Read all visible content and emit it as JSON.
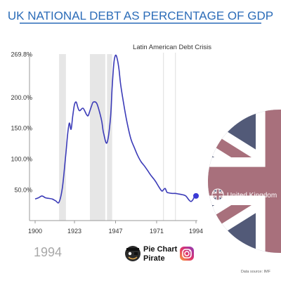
{
  "title": "UK NATIONAL DEBT AS PERCENTAGE OF GDP",
  "current_year_label": "1994",
  "annotation": "Latin American Debt Crisis",
  "brand": {
    "name_line1": "Pie Chart",
    "name_line2": "Pirate"
  },
  "source": "Data source: IMF",
  "colors": {
    "title": "#2b6cb8",
    "line": "#3b3bb8",
    "dot": "#3b3bd6",
    "shading": "#e6e6e6",
    "axis": "#999999",
    "grid_text": "#333333",
    "year_label": "#a8a8a8",
    "flag_red": "#a8707c",
    "flag_blue": "#525a78",
    "flag_white": "#ffffff"
  },
  "icons": [
    "pirate-avatar-icon",
    "instagram-icon",
    "uk-flag-icon"
  ],
  "chart_data": {
    "type": "line",
    "title": "UK NATIONAL DEBT AS PERCENTAGE OF GDP",
    "xlabel": "",
    "ylabel": "",
    "xlim": [
      1900,
      1994
    ],
    "ylim": [
      0,
      269.8
    ],
    "x_ticks": [
      "1900",
      "1923",
      "1947",
      "1971",
      "1994"
    ],
    "y_ticks": [
      "50.0%",
      "100.0%",
      "150.0%",
      "200.0%",
      "269.8%"
    ],
    "y_tick_values": [
      50,
      100,
      150,
      200,
      269.8
    ],
    "x_tick_values": [
      1900,
      1923,
      1947,
      1971,
      1994
    ],
    "shaded_periods": [
      [
        1914,
        1918
      ],
      [
        1932,
        1941
      ],
      [
        1942,
        1945
      ]
    ],
    "event_lines": [
      {
        "x": 1975
      },
      {
        "x": 1982
      }
    ],
    "series": [
      {
        "name": "United Kingdom",
        "x": [
          1900,
          1902,
          1904,
          1906,
          1908,
          1910,
          1912,
          1914,
          1916,
          1918,
          1919,
          1920,
          1921,
          1922,
          1923,
          1924,
          1925,
          1926,
          1928,
          1930,
          1931,
          1932,
          1933,
          1934,
          1936,
          1938,
          1939,
          1940,
          1942,
          1944,
          1945,
          1946,
          1947,
          1948,
          1949,
          1950,
          1952,
          1954,
          1956,
          1958,
          1960,
          1962,
          1964,
          1966,
          1968,
          1970,
          1972,
          1974,
          1975,
          1976,
          1977,
          1978,
          1980,
          1982,
          1984,
          1986,
          1988,
          1990,
          1991,
          1992,
          1993,
          1994
        ],
        "values": [
          35,
          37,
          40,
          37,
          36,
          35,
          32,
          30,
          55,
          110,
          140,
          158,
          148,
          170,
          188,
          192,
          183,
          178,
          182,
          172,
          170,
          178,
          186,
          192,
          190,
          172,
          160,
          142,
          126,
          165,
          215,
          255,
          268,
          262,
          245,
          220,
          185,
          155,
          132,
          118,
          105,
          95,
          88,
          80,
          72,
          65,
          56,
          48,
          50,
          52,
          46,
          45,
          44,
          44,
          43,
          42,
          40,
          33,
          31,
          33,
          38,
          40
        ]
      }
    ]
  },
  "legend": {
    "label": "United Kingdom",
    "placement": "right"
  }
}
